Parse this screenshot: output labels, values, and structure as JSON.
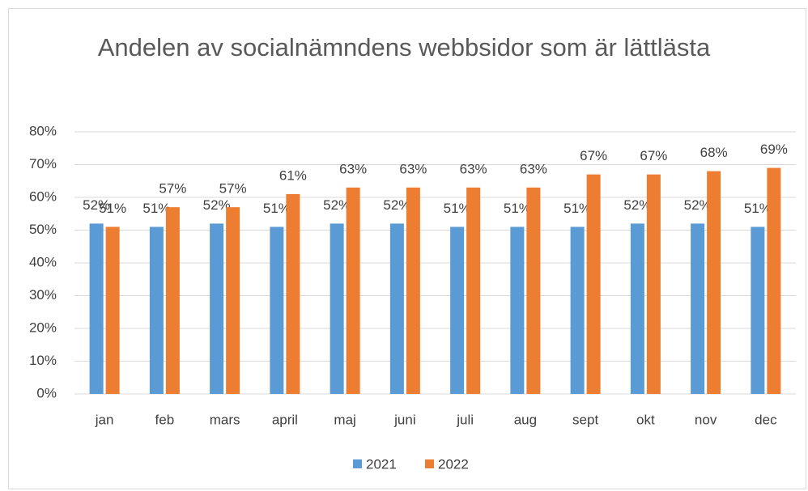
{
  "chart_data": {
    "type": "bar",
    "title": "Andelen av socialnämndens webbsidor som är lättlästa",
    "categories": [
      "jan",
      "feb",
      "mars",
      "april",
      "maj",
      "juni",
      "juli",
      "aug",
      "sept",
      "okt",
      "nov",
      "dec"
    ],
    "series": [
      {
        "name": "2021",
        "color": "#5b9bd5",
        "values": [
          52,
          51,
          52,
          51,
          52,
          52,
          51,
          51,
          51,
          52,
          52,
          51
        ],
        "value_labels": [
          "52%",
          "51%",
          "52%",
          "51%",
          "52%",
          "52%",
          "51%",
          "51%",
          "51%",
          "52%",
          "52%",
          "51%"
        ]
      },
      {
        "name": "2022",
        "color": "#ed7d31",
        "values": [
          51,
          57,
          57,
          61,
          63,
          63,
          63,
          63,
          67,
          67,
          68,
          69
        ],
        "value_labels": [
          "51%",
          "57%",
          "57%",
          "61%",
          "63%",
          "63%",
          "63%",
          "63%",
          "67%",
          "67%",
          "68%",
          "69%"
        ]
      }
    ],
    "ylim": [
      0,
      80
    ],
    "yticks": [
      {
        "value": 0,
        "label": "0%"
      },
      {
        "value": 10,
        "label": "10%"
      },
      {
        "value": 20,
        "label": "20%"
      },
      {
        "value": 30,
        "label": "30%"
      },
      {
        "value": 40,
        "label": "40%"
      },
      {
        "value": 50,
        "label": "50%"
      },
      {
        "value": 60,
        "label": "60%"
      },
      {
        "value": 70,
        "label": "70%"
      },
      {
        "value": 80,
        "label": "80%"
      }
    ],
    "grid": true,
    "legend": "bottom"
  }
}
